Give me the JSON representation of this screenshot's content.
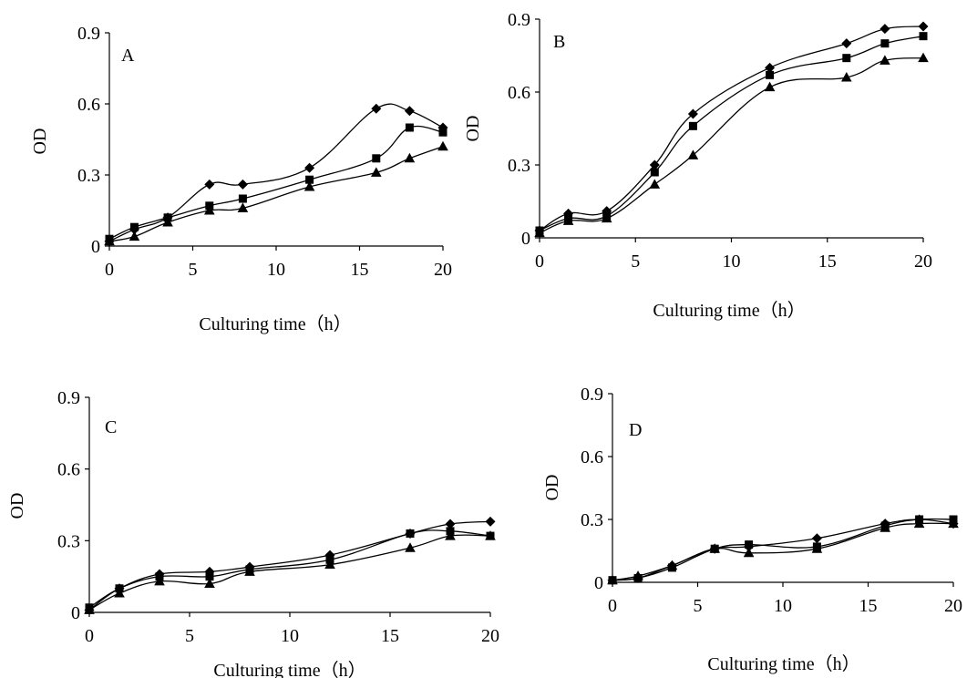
{
  "chart_data": [
    {
      "type": "line",
      "title": "A",
      "xlabel": "Culturing time（h）",
      "ylabel": "OD",
      "xlim": [
        0,
        20
      ],
      "ylim": [
        0,
        0.9
      ],
      "xticks": [
        "0",
        "5",
        "10",
        "15",
        "20"
      ],
      "yticks": [
        "0",
        "0.3",
        "0.6",
        "0.9"
      ],
      "x": [
        0,
        1.5,
        3.5,
        6,
        8,
        12,
        16,
        18,
        20
      ],
      "series": [
        {
          "marker": "diamond",
          "values": [
            0.02,
            0.07,
            0.12,
            0.26,
            0.26,
            0.33,
            0.58,
            0.57,
            0.5
          ]
        },
        {
          "marker": "square",
          "values": [
            0.03,
            0.08,
            0.12,
            0.17,
            0.2,
            0.28,
            0.37,
            0.5,
            0.48
          ]
        },
        {
          "marker": "triangle",
          "values": [
            0.02,
            0.04,
            0.1,
            0.15,
            0.16,
            0.25,
            0.31,
            0.37,
            0.42
          ]
        }
      ]
    },
    {
      "type": "line",
      "title": "B",
      "xlabel": "Culturing time（h）",
      "ylabel": "OD",
      "xlim": [
        0,
        20
      ],
      "ylim": [
        0,
        0.9
      ],
      "xticks": [
        "0",
        "5",
        "10",
        "15",
        "20"
      ],
      "yticks": [
        "0",
        "0.3",
        "0.6",
        "0.9"
      ],
      "x": [
        0,
        1.5,
        3.5,
        6,
        8,
        12,
        16,
        18,
        20
      ],
      "series": [
        {
          "marker": "diamond",
          "values": [
            0.03,
            0.1,
            0.11,
            0.3,
            0.51,
            0.7,
            0.8,
            0.86,
            0.87
          ]
        },
        {
          "marker": "square",
          "values": [
            0.03,
            0.08,
            0.09,
            0.27,
            0.46,
            0.67,
            0.74,
            0.8,
            0.83
          ]
        },
        {
          "marker": "triangle",
          "values": [
            0.02,
            0.07,
            0.08,
            0.22,
            0.34,
            0.62,
            0.66,
            0.73,
            0.74
          ]
        }
      ]
    },
    {
      "type": "line",
      "title": "C",
      "xlabel": "Culturing time（h）",
      "ylabel": "OD",
      "xlim": [
        0,
        20
      ],
      "ylim": [
        0,
        0.9
      ],
      "xticks": [
        "0",
        "5",
        "10",
        "15",
        "20"
      ],
      "yticks": [
        "0",
        "0.3",
        "0.6",
        "0.9"
      ],
      "x": [
        0,
        1.5,
        3.5,
        6,
        8,
        12,
        16,
        18,
        20
      ],
      "series": [
        {
          "marker": "diamond",
          "values": [
            0.01,
            0.1,
            0.16,
            0.17,
            0.19,
            0.24,
            0.33,
            0.37,
            0.38
          ]
        },
        {
          "marker": "square",
          "values": [
            0.02,
            0.1,
            0.15,
            0.15,
            0.18,
            0.22,
            0.33,
            0.34,
            0.32
          ]
        },
        {
          "marker": "triangle",
          "values": [
            0.01,
            0.08,
            0.13,
            0.12,
            0.17,
            0.2,
            0.27,
            0.32,
            0.32
          ]
        }
      ]
    },
    {
      "type": "line",
      "title": "D",
      "xlabel": "Culturing time（h）",
      "ylabel": "OD",
      "xlim": [
        0,
        20
      ],
      "ylim": [
        0,
        0.9
      ],
      "xticks": [
        "0",
        "5",
        "10",
        "15",
        "20"
      ],
      "yticks": [
        "0",
        "0.3",
        "0.6",
        "0.9"
      ],
      "x": [
        0,
        1.5,
        3.5,
        6,
        8,
        12,
        16,
        18,
        20
      ],
      "series": [
        {
          "marker": "diamond",
          "values": [
            0.01,
            0.02,
            0.08,
            0.16,
            0.17,
            0.21,
            0.28,
            0.3,
            0.28
          ]
        },
        {
          "marker": "square",
          "values": [
            0.01,
            0.02,
            0.07,
            0.16,
            0.18,
            0.17,
            0.27,
            0.3,
            0.3
          ]
        },
        {
          "marker": "triangle",
          "values": [
            0.01,
            0.03,
            0.08,
            0.16,
            0.14,
            0.16,
            0.26,
            0.28,
            0.28
          ]
        }
      ]
    }
  ]
}
